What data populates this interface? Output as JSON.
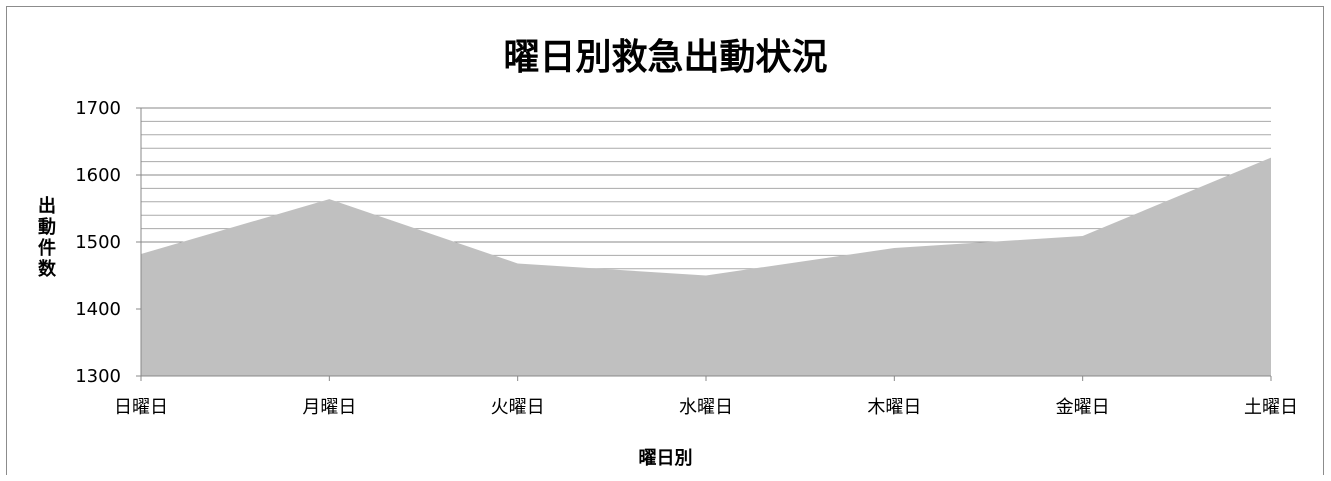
{
  "chart_data": {
    "type": "area",
    "title": "曜日別救急出動状況",
    "xlabel": "曜日別",
    "ylabel": "出動件数",
    "categories": [
      "日曜日",
      "月曜日",
      "火曜日",
      "水曜日",
      "木曜日",
      "金曜日",
      "土曜日"
    ],
    "series": [
      {
        "values": [
          1482,
          1564,
          1468,
          1450,
          1491,
          1509,
          1626
        ]
      }
    ],
    "ylim": [
      1300,
      1700
    ],
    "yticks": [
      1300,
      1400,
      1500,
      1600,
      1700
    ],
    "grid": true,
    "fill_color": "#c0c0c0",
    "grid_color": "#888888",
    "minor_grid_color": "#aaaaaa"
  }
}
